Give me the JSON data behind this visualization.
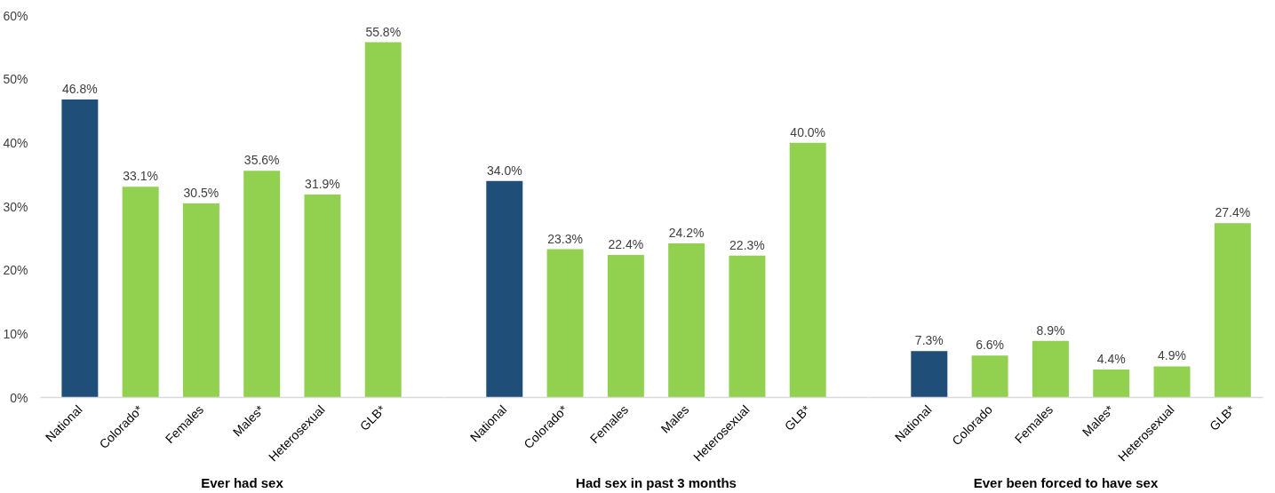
{
  "chart_data": [
    {
      "type": "bar",
      "categories": [
        "National",
        "Colorado*",
        "Females",
        "Males*",
        "Heterosexual",
        "GLB*"
      ],
      "values": [
        46.8,
        33.1,
        30.5,
        35.6,
        31.9,
        55.8
      ],
      "colors": [
        "#1f4e79",
        "#92d050",
        "#92d050",
        "#92d050",
        "#92d050",
        "#92d050"
      ],
      "value_labels": [
        "46.8%",
        "33.1%",
        "30.5%",
        "35.6%",
        "31.9%",
        "55.8%"
      ],
      "xlabel": "Ever had sex",
      "ylim": [
        0,
        60
      ],
      "yticks": [
        {
          "value": 0,
          "label": "0%"
        },
        {
          "value": 10,
          "label": "10%"
        },
        {
          "value": 20,
          "label": "20%"
        },
        {
          "value": 30,
          "label": "30%"
        },
        {
          "value": 40,
          "label": "40%"
        },
        {
          "value": 50,
          "label": "50%"
        },
        {
          "value": 60,
          "label": "60%"
        }
      ]
    },
    {
      "type": "bar",
      "categories": [
        "National",
        "Colorado*",
        "Females",
        "Males",
        "Heterosexual",
        "GLB*"
      ],
      "values": [
        34.0,
        23.3,
        22.4,
        24.2,
        22.3,
        40.0
      ],
      "colors": [
        "#1f4e79",
        "#92d050",
        "#92d050",
        "#92d050",
        "#92d050",
        "#92d050"
      ],
      "value_labels": [
        "34.0%",
        "23.3%",
        "22.4%",
        "24.2%",
        "22.3%",
        "40.0%"
      ],
      "xlabel": "Had sex in past 3 months",
      "ylim": [
        0,
        60
      ],
      "tick_labels": "x"
    },
    {
      "type": "bar",
      "categories": [
        "National",
        "Colorado",
        "Females",
        "Males*",
        "Heterosexual",
        "GLB*"
      ],
      "values": [
        7.3,
        6.6,
        8.9,
        4.4,
        4.9,
        27.4
      ],
      "colors": [
        "#1f4e79",
        "#92d050",
        "#92d050",
        "#92d050",
        "#92d050",
        "#92d050"
      ],
      "value_labels": [
        "7.3%",
        "6.6%",
        "8.9%",
        "4.4%",
        "4.9%",
        "27.4%"
      ],
      "xlabel": "Ever been forced to have sex",
      "ylim": [
        0,
        60
      ],
      "tick_labels": "x"
    }
  ]
}
